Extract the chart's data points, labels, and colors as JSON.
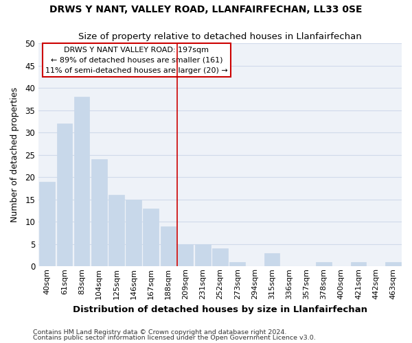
{
  "title": "DRWS Y NANT, VALLEY ROAD, LLANFAIRFECHAN, LL33 0SE",
  "subtitle": "Size of property relative to detached houses in Llanfairfechan",
  "xlabel": "Distribution of detached houses by size in Llanfairfechan",
  "ylabel": "Number of detached properties",
  "categories": [
    "40sqm",
    "61sqm",
    "83sqm",
    "104sqm",
    "125sqm",
    "146sqm",
    "167sqm",
    "188sqm",
    "209sqm",
    "231sqm",
    "252sqm",
    "273sqm",
    "294sqm",
    "315sqm",
    "336sqm",
    "357sqm",
    "378sqm",
    "400sqm",
    "421sqm",
    "442sqm",
    "463sqm"
  ],
  "values": [
    19,
    32,
    38,
    24,
    16,
    15,
    13,
    9,
    5,
    5,
    4,
    1,
    0,
    3,
    0,
    0,
    1,
    0,
    1,
    0,
    1
  ],
  "bar_color": "#c8d8ea",
  "bar_edge_color": "#c8d8ea",
  "vline_x": 7.5,
  "vline_color": "#cc0000",
  "annotation_line1": "DRWS Y NANT VALLEY ROAD: 197sqm",
  "annotation_line2": "← 89% of detached houses are smaller (161)",
  "annotation_line3": "11% of semi-detached houses are larger (20) →",
  "annotation_box_color": "#cc0000",
  "ylim": [
    0,
    50
  ],
  "yticks": [
    0,
    5,
    10,
    15,
    20,
    25,
    30,
    35,
    40,
    45,
    50
  ],
  "grid_color": "#d0daea",
  "bg_color": "#eef2f8",
  "footer1": "Contains HM Land Registry data © Crown copyright and database right 2024.",
  "footer2": "Contains public sector information licensed under the Open Government Licence v3.0."
}
